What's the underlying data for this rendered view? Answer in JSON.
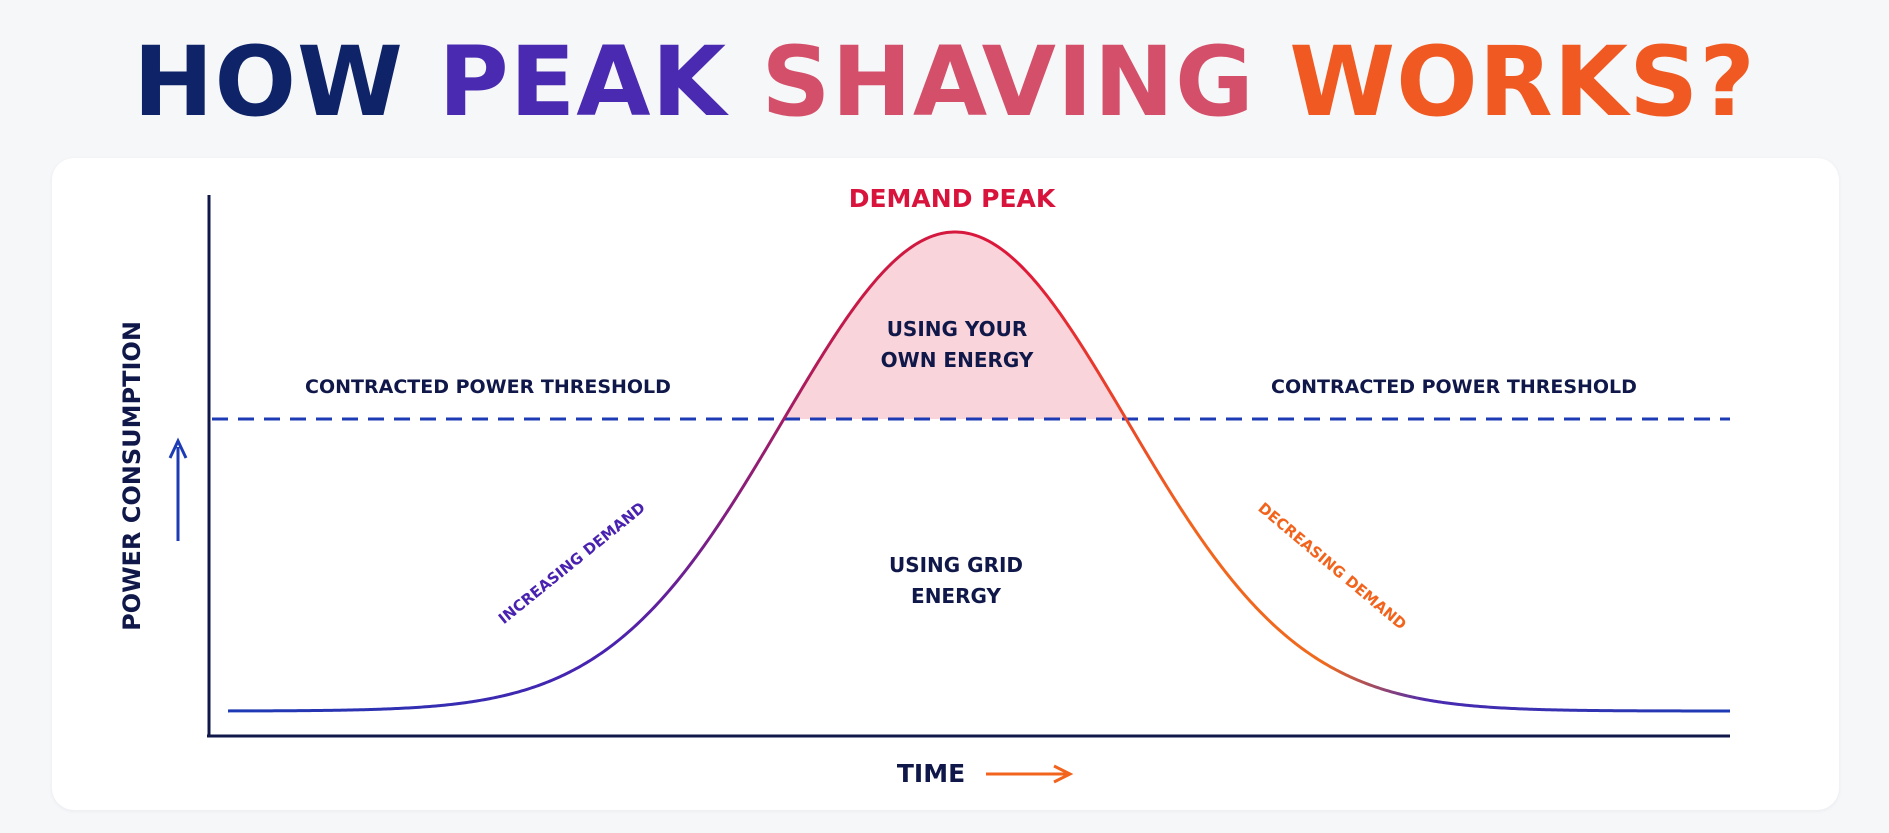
{
  "title": {
    "words": [
      {
        "text": "HOW",
        "color": "#0f2468"
      },
      {
        "text": "PEAK",
        "color": "#4a2ab0"
      },
      {
        "text": "SHAVING",
        "color": "#d4506a"
      },
      {
        "text": "WORKS?",
        "color": "#f05a22"
      }
    ]
  },
  "diagram": {
    "peak_label": "DEMAND PEAK",
    "own_energy_label": [
      "USING YOUR",
      "OWN ENERGY"
    ],
    "grid_energy_label": [
      "USING GRID",
      "ENERGY"
    ],
    "threshold_label_left": "CONTRACTED POWER THRESHOLD",
    "threshold_label_right": "CONTRACTED POWER THRESHOLD",
    "increasing_label": "INCREASING DEMAND",
    "decreasing_label": "DECREASING DEMAND",
    "y_axis_label": "POWER CONSUMPTION",
    "x_axis_label": "TIME",
    "colors": {
      "navy": "#10184a",
      "blue_line": "#1c3bb4",
      "purple": "#4a22b0",
      "red": "#d8143c",
      "orange": "#f2641e",
      "fill": "#f8cdd3"
    }
  }
}
